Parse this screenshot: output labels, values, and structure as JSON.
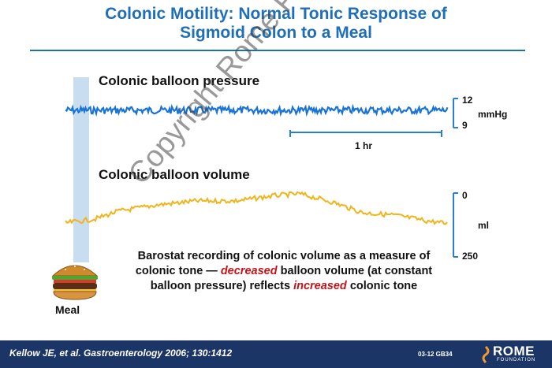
{
  "title": {
    "line1": "Colonic Motility: Normal Tonic Response of",
    "line2": "Sigmoid Colon to a Meal"
  },
  "pressure": {
    "label": "Colonic balloon pressure",
    "scale_top": "12",
    "scale_bottom": "9",
    "unit": "mmHg",
    "time_bar_label": "1 hr",
    "trace_color": "#1a73d6"
  },
  "volume": {
    "label": "Colonic balloon volume",
    "scale_top": "0",
    "scale_bottom": "250",
    "unit": "ml",
    "trace_color": "#f0b41c"
  },
  "caption": {
    "part1": "Barostat recording of colonic volume as a measure of colonic tone — ",
    "emph1": "decreased",
    "part2": " balloon volume (at constant balloon pressure) reflects ",
    "emph2": "increased",
    "part3": " colonic tone"
  },
  "meal": {
    "label": "Meal",
    "icon": "burger-icon"
  },
  "watermark": "Copyright Rome Foundation",
  "footer": {
    "citation": "Kellow JE, et al. Gastroenterology 2006; 130:1412",
    "slide_code": "03-12  GB34",
    "logo_text": "ROME",
    "logo_subtext": "FOUNDATION"
  },
  "colors": {
    "title_blue": "#1f6fb8",
    "meal_band": "#c8ddf0",
    "emphasis_red": "#c0141a",
    "footer_navy": "#1a3566",
    "scale_blue": "#2a7fd4"
  }
}
